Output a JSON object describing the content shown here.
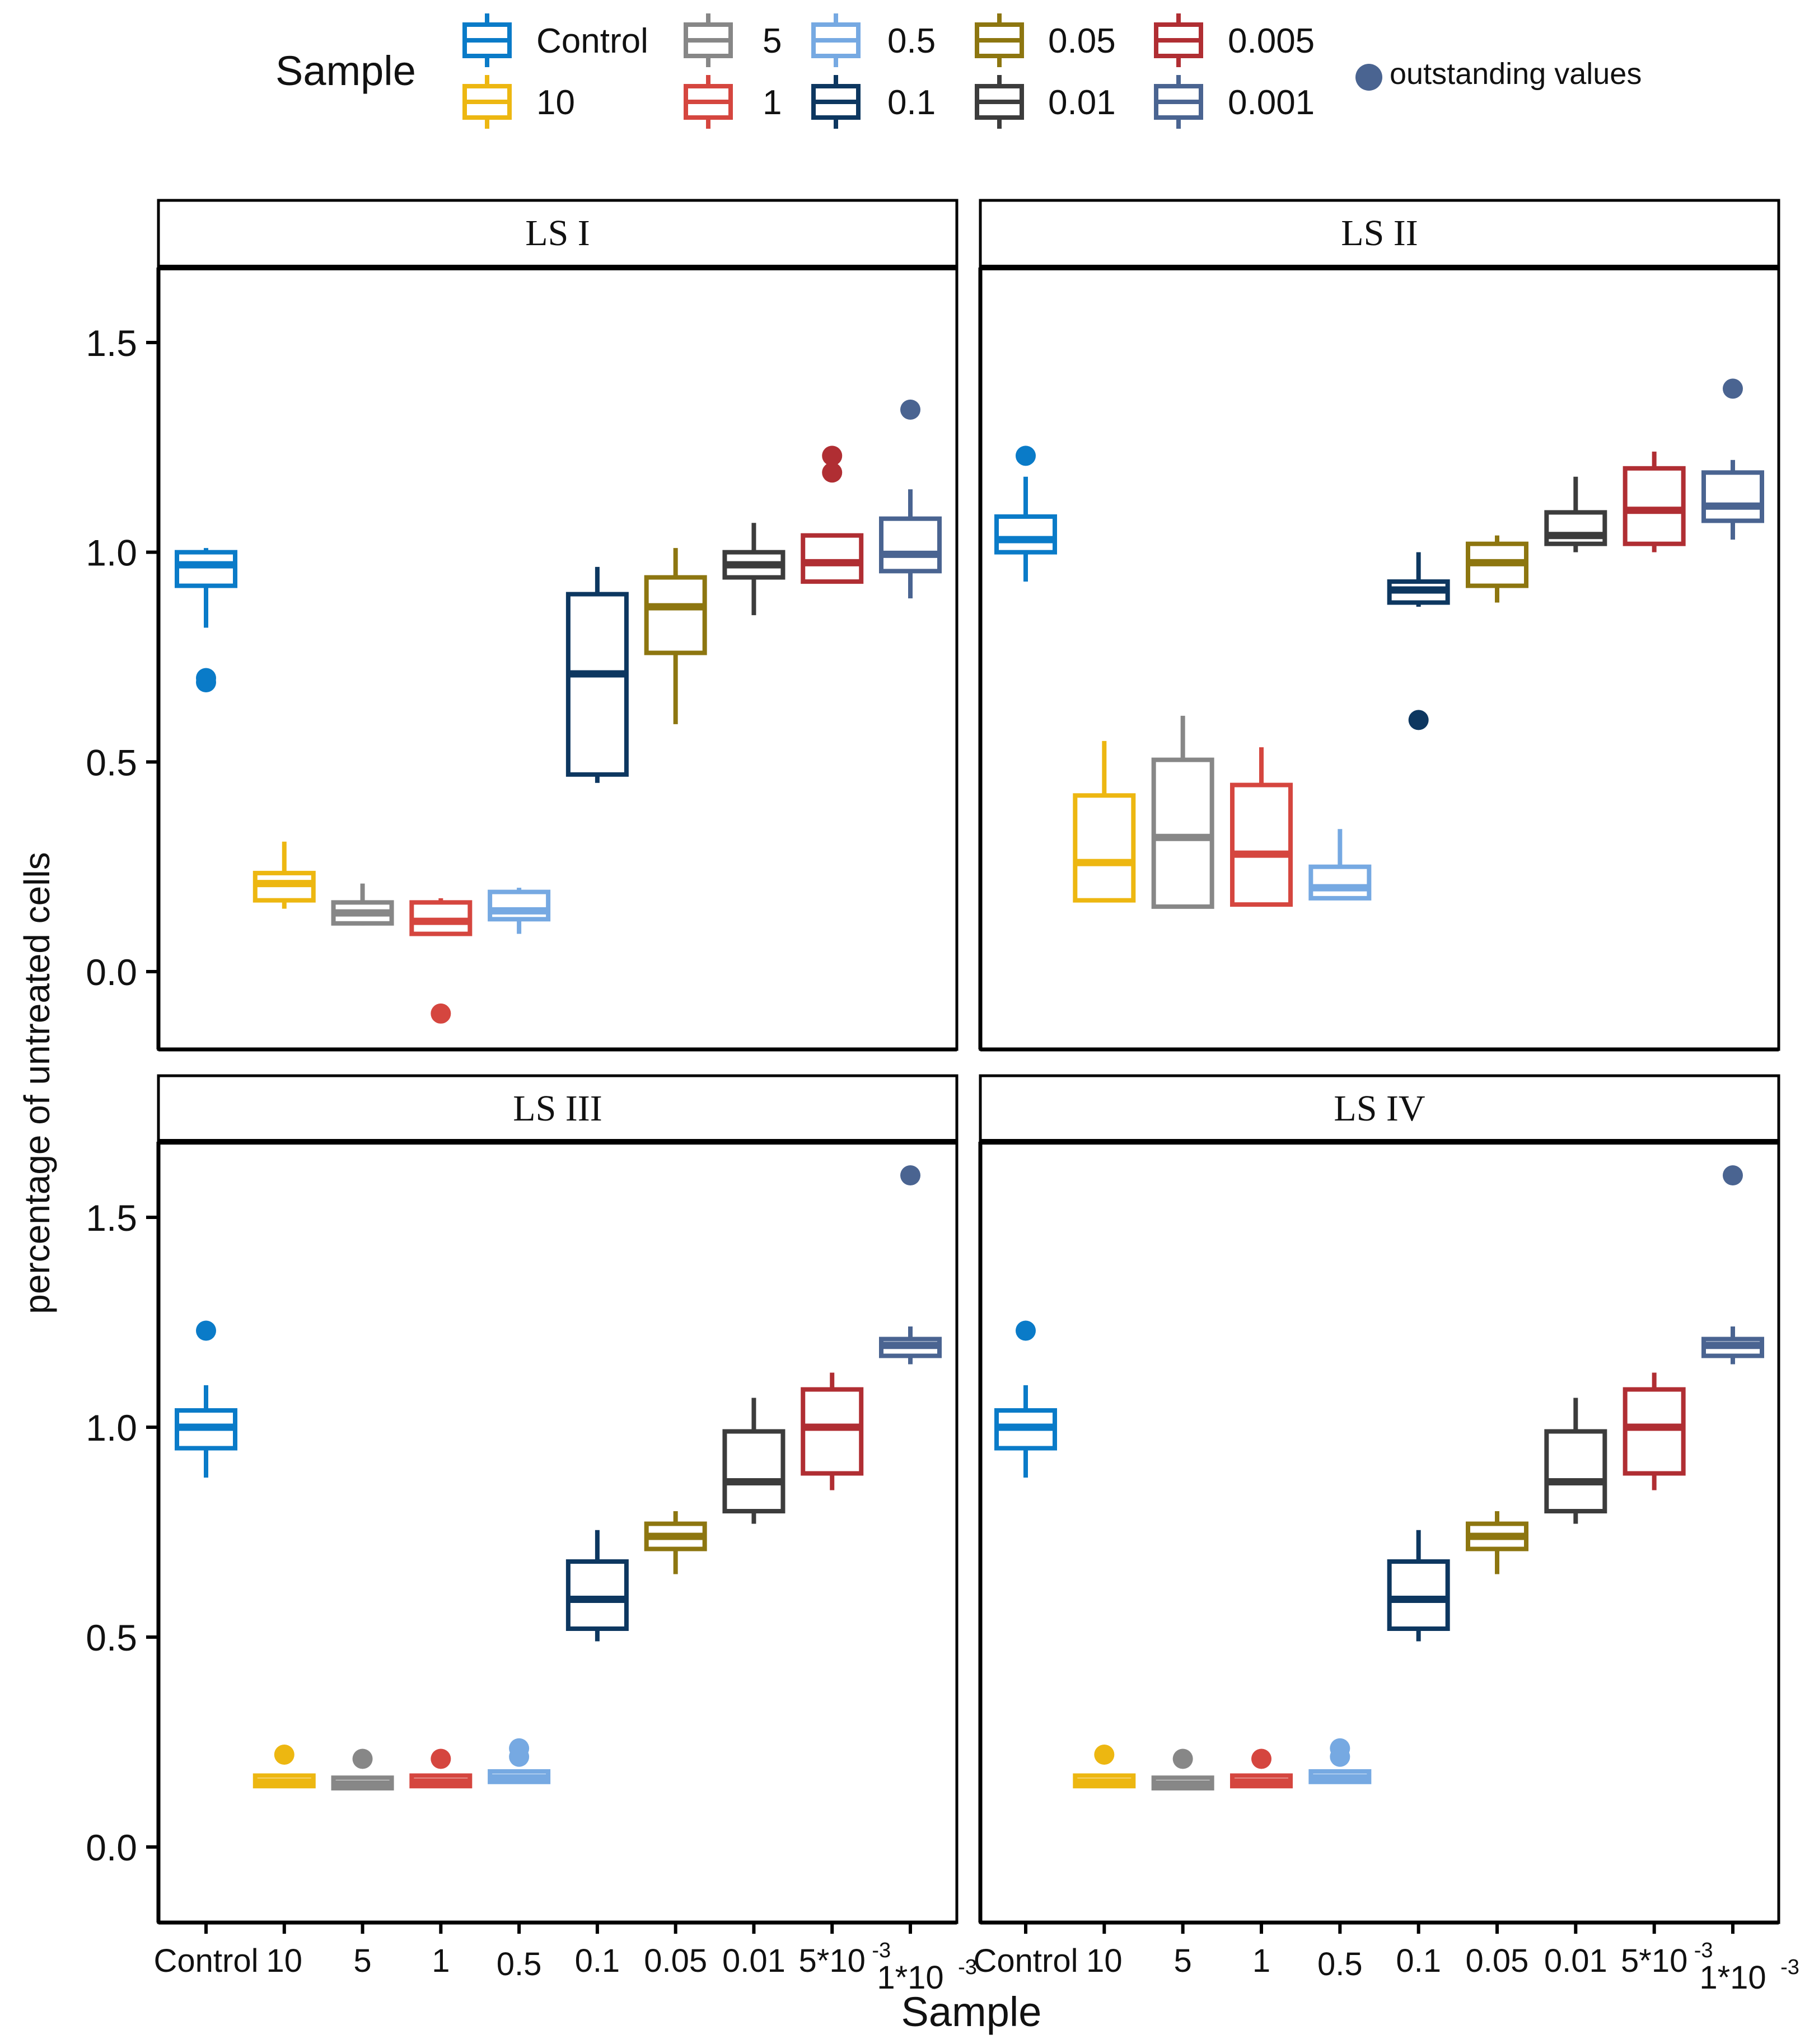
{
  "chart_data": {
    "type": "boxplot",
    "legend": {
      "title": "Sample",
      "outlier_label": "outstanding values",
      "outlier_color": "#4A6491",
      "entries": [
        {
          "key": "Control",
          "label": "Control",
          "color": "#0A7BC8"
        },
        {
          "key": "10",
          "label": "10",
          "color": "#EDB711"
        },
        {
          "key": "5",
          "label": "5",
          "color": "#878787"
        },
        {
          "key": "1",
          "label": "1",
          "color": "#D5463F"
        },
        {
          "key": "0.5",
          "label": "0.5",
          "color": "#76A9E2"
        },
        {
          "key": "0.1",
          "label": "0.1",
          "color": "#0D3760"
        },
        {
          "key": "0.05",
          "label": "0.05",
          "color": "#8D7610"
        },
        {
          "key": "0.01",
          "label": "0.01",
          "color": "#3C3C3C"
        },
        {
          "key": "0.005",
          "label": "0.005",
          "color": "#B02E33"
        },
        {
          "key": "0.001",
          "label": "0.001",
          "color": "#4A6491"
        }
      ]
    },
    "xlabel": "Sample",
    "ylabel": "percentage of untreated cells",
    "ylim": [
      -0.2,
      1.7
    ],
    "yticks": [
      0.0,
      0.5,
      1.0,
      1.5
    ],
    "ytick_labels": [
      "0.0",
      "0.5",
      "1.0",
      "1.5"
    ],
    "categories": [
      "Control",
      "10",
      "5",
      "1",
      "0.5",
      "0.1",
      "0.05",
      "0.01",
      "5*10",
      "1*10"
    ],
    "tick_exponent": "-3",
    "panels": [
      {
        "title": "LS I",
        "boxes": [
          {
            "whisker_low": 0.82,
            "q1": 0.92,
            "median": 0.97,
            "q3": 1.0,
            "whisker_high": 1.01,
            "outliers": [
              0.69,
              0.7
            ]
          },
          {
            "whisker_low": 0.15,
            "q1": 0.17,
            "median": 0.21,
            "q3": 0.235,
            "whisker_high": 0.31,
            "outliers": []
          },
          {
            "whisker_low": 0.11,
            "q1": 0.115,
            "median": 0.14,
            "q3": 0.165,
            "whisker_high": 0.21,
            "outliers": []
          },
          {
            "whisker_low": 0.09,
            "q1": 0.09,
            "median": 0.12,
            "q3": 0.165,
            "whisker_high": 0.175,
            "outliers": [
              -0.1
            ]
          },
          {
            "whisker_low": 0.09,
            "q1": 0.125,
            "median": 0.145,
            "q3": 0.19,
            "whisker_high": 0.2,
            "outliers": []
          },
          {
            "whisker_low": 0.45,
            "q1": 0.47,
            "median": 0.71,
            "q3": 0.9,
            "whisker_high": 0.965,
            "outliers": []
          },
          {
            "whisker_low": 0.59,
            "q1": 0.76,
            "median": 0.87,
            "q3": 0.94,
            "whisker_high": 1.01,
            "outliers": []
          },
          {
            "whisker_low": 0.85,
            "q1": 0.94,
            "median": 0.97,
            "q3": 1.0,
            "whisker_high": 1.07,
            "outliers": []
          },
          {
            "whisker_low": 0.93,
            "q1": 0.93,
            "median": 0.975,
            "q3": 1.04,
            "whisker_high": 1.04,
            "outliers": [
              1.19,
              1.23
            ]
          },
          {
            "whisker_low": 0.89,
            "q1": 0.955,
            "median": 0.995,
            "q3": 1.08,
            "whisker_high": 1.15,
            "outliers": [
              1.34
            ]
          }
        ]
      },
      {
        "title": "LS II",
        "boxes": [
          {
            "whisker_low": 0.93,
            "q1": 1.0,
            "median": 1.03,
            "q3": 1.085,
            "whisker_high": 1.18,
            "outliers": [
              1.23
            ]
          },
          {
            "whisker_low": 0.17,
            "q1": 0.17,
            "median": 0.26,
            "q3": 0.42,
            "whisker_high": 0.55,
            "outliers": []
          },
          {
            "whisker_low": 0.155,
            "q1": 0.155,
            "median": 0.32,
            "q3": 0.505,
            "whisker_high": 0.61,
            "outliers": []
          },
          {
            "whisker_low": 0.16,
            "q1": 0.16,
            "median": 0.28,
            "q3": 0.445,
            "whisker_high": 0.535,
            "outliers": []
          },
          {
            "whisker_low": 0.175,
            "q1": 0.175,
            "median": 0.2,
            "q3": 0.25,
            "whisker_high": 0.34,
            "outliers": []
          },
          {
            "whisker_low": 0.87,
            "q1": 0.88,
            "median": 0.91,
            "q3": 0.93,
            "whisker_high": 1.0,
            "outliers": [
              0.6
            ]
          },
          {
            "whisker_low": 0.88,
            "q1": 0.92,
            "median": 0.975,
            "q3": 1.02,
            "whisker_high": 1.04,
            "outliers": []
          },
          {
            "whisker_low": 1.0,
            "q1": 1.02,
            "median": 1.04,
            "q3": 1.095,
            "whisker_high": 1.18,
            "outliers": []
          },
          {
            "whisker_low": 1.0,
            "q1": 1.02,
            "median": 1.1,
            "q3": 1.2,
            "whisker_high": 1.24,
            "outliers": []
          },
          {
            "whisker_low": 1.03,
            "q1": 1.075,
            "median": 1.11,
            "q3": 1.19,
            "whisker_high": 1.22,
            "outliers": [
              1.39
            ]
          }
        ]
      },
      {
        "title": "LS III",
        "boxes": [
          {
            "whisker_low": 0.88,
            "q1": 0.95,
            "median": 1.0,
            "q3": 1.04,
            "whisker_high": 1.1,
            "outliers": [
              1.23
            ]
          },
          {
            "whisker_low": 0.14,
            "q1": 0.145,
            "median": 0.155,
            "q3": 0.17,
            "whisker_high": 0.175,
            "outliers": [
              0.22
            ]
          },
          {
            "whisker_low": 0.14,
            "q1": 0.14,
            "median": 0.15,
            "q3": 0.165,
            "whisker_high": 0.17,
            "outliers": [
              0.21
            ]
          },
          {
            "whisker_low": 0.145,
            "q1": 0.145,
            "median": 0.155,
            "q3": 0.17,
            "whisker_high": 0.175,
            "outliers": [
              0.21
            ]
          },
          {
            "whisker_low": 0.155,
            "q1": 0.155,
            "median": 0.165,
            "q3": 0.18,
            "whisker_high": 0.185,
            "outliers": [
              0.215,
              0.235
            ]
          },
          {
            "whisker_low": 0.49,
            "q1": 0.52,
            "median": 0.59,
            "q3": 0.68,
            "whisker_high": 0.755,
            "outliers": []
          },
          {
            "whisker_low": 0.65,
            "q1": 0.71,
            "median": 0.74,
            "q3": 0.77,
            "whisker_high": 0.8,
            "outliers": []
          },
          {
            "whisker_low": 0.77,
            "q1": 0.8,
            "median": 0.87,
            "q3": 0.99,
            "whisker_high": 1.07,
            "outliers": []
          },
          {
            "whisker_low": 0.85,
            "q1": 0.89,
            "median": 1.0,
            "q3": 1.09,
            "whisker_high": 1.13,
            "outliers": []
          },
          {
            "whisker_low": 1.15,
            "q1": 1.17,
            "median": 1.195,
            "q3": 1.21,
            "whisker_high": 1.24,
            "outliers": [
              1.6
            ]
          }
        ]
      },
      {
        "title": "LS IV",
        "boxes": [
          {
            "whisker_low": 0.88,
            "q1": 0.95,
            "median": 1.0,
            "q3": 1.04,
            "whisker_high": 1.1,
            "outliers": [
              1.23
            ]
          },
          {
            "whisker_low": 0.14,
            "q1": 0.145,
            "median": 0.155,
            "q3": 0.17,
            "whisker_high": 0.175,
            "outliers": [
              0.22
            ]
          },
          {
            "whisker_low": 0.14,
            "q1": 0.14,
            "median": 0.15,
            "q3": 0.165,
            "whisker_high": 0.17,
            "outliers": [
              0.21
            ]
          },
          {
            "whisker_low": 0.145,
            "q1": 0.145,
            "median": 0.155,
            "q3": 0.17,
            "whisker_high": 0.175,
            "outliers": [
              0.21
            ]
          },
          {
            "whisker_low": 0.155,
            "q1": 0.155,
            "median": 0.165,
            "q3": 0.18,
            "whisker_high": 0.185,
            "outliers": [
              0.215,
              0.235
            ]
          },
          {
            "whisker_low": 0.49,
            "q1": 0.52,
            "median": 0.59,
            "q3": 0.68,
            "whisker_high": 0.755,
            "outliers": []
          },
          {
            "whisker_low": 0.65,
            "q1": 0.71,
            "median": 0.74,
            "q3": 0.77,
            "whisker_high": 0.8,
            "outliers": []
          },
          {
            "whisker_low": 0.77,
            "q1": 0.8,
            "median": 0.87,
            "q3": 0.99,
            "whisker_high": 1.07,
            "outliers": []
          },
          {
            "whisker_low": 0.85,
            "q1": 0.89,
            "median": 1.0,
            "q3": 1.09,
            "whisker_high": 1.13,
            "outliers": []
          },
          {
            "whisker_low": 1.15,
            "q1": 1.17,
            "median": 1.195,
            "q3": 1.21,
            "whisker_high": 1.24,
            "outliers": [
              1.6
            ]
          }
        ]
      }
    ]
  }
}
